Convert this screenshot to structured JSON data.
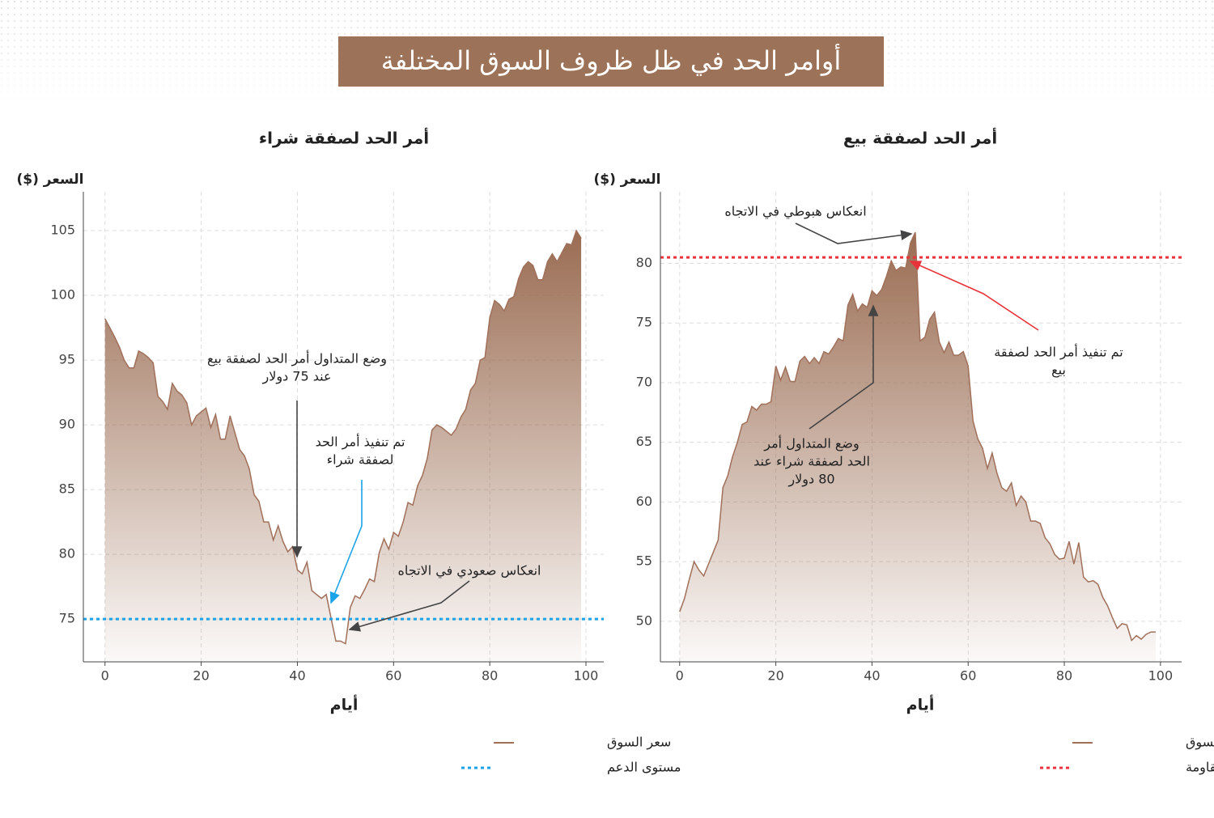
{
  "title": "أوامر الحد في ظل ظروف السوق المختلفة",
  "chart_data": [
    {
      "type": "area",
      "title": "أمر الحد لصفقة شراء",
      "y_label": "السعر ($)",
      "x_label": "أيام",
      "xlim": [
        -4.5,
        103.7
      ],
      "xticks": [
        0,
        20,
        40,
        60,
        80,
        100
      ],
      "ylim": [
        71.7,
        108
      ],
      "yticks": [
        75,
        80,
        85,
        90,
        95,
        100,
        105
      ],
      "grid": true,
      "x": [
        0,
        1,
        2,
        3,
        4,
        5,
        6,
        7,
        8,
        9,
        10,
        11,
        12,
        13,
        14,
        15,
        16,
        17,
        18,
        19,
        20,
        21,
        22,
        23,
        24,
        25,
        26,
        27,
        28,
        29,
        30,
        31,
        32,
        33,
        34,
        35,
        36,
        37,
        38,
        39,
        40,
        41,
        42,
        43,
        44,
        45,
        46,
        47,
        48,
        49,
        50,
        51,
        52,
        53,
        54,
        55,
        56,
        57,
        58,
        59,
        60,
        61,
        62,
        63,
        64,
        65,
        66,
        67,
        68,
        69,
        70,
        71,
        72,
        73,
        74,
        75,
        76,
        77,
        78,
        79,
        80,
        81,
        82,
        83,
        84,
        85,
        86,
        87,
        88,
        89,
        90,
        91,
        92,
        93,
        94,
        95,
        96,
        97,
        98,
        99
      ],
      "series": [
        {
          "name": "سعر السوق",
          "color": "#a0705a",
          "values": [
            98.2,
            97.5,
            96.8,
            96,
            95,
            94.4,
            94.4,
            95.7,
            95.5,
            95.2,
            94.8,
            92.2,
            91.8,
            91.2,
            93.2,
            92.6,
            92.3,
            91.7,
            90,
            90.7,
            91,
            91.3,
            89.8,
            90.8,
            88.9,
            88.9,
            90.7,
            89.4,
            88.1,
            87.6,
            86.6,
            84.6,
            84.1,
            82.5,
            82.5,
            81.1,
            82.2,
            81,
            80.2,
            80.6,
            78.8,
            78.5,
            79.4,
            77.2,
            76.9,
            76.6,
            76.9,
            75.1,
            73.3,
            73.3,
            73.1,
            75.9,
            76.8,
            76.6,
            77.3,
            78.1,
            77.9,
            80.1,
            81.2,
            80.4,
            81.7,
            81.4,
            82.5,
            84,
            83.8,
            85.3,
            86.1,
            87.4,
            89.6,
            90,
            89.8,
            89.5,
            89.2,
            89.7,
            90.6,
            91.2,
            92.7,
            93.2,
            95,
            95.2,
            98.3,
            99.6,
            99.3,
            98.8,
            99.7,
            99.9,
            101.3,
            102.2,
            102.6,
            102.3,
            101.2,
            101.2,
            102.6,
            103.2,
            102.6,
            103.3,
            104,
            103.9,
            105,
            104.4
          ]
        }
      ],
      "reference_line": {
        "name": "مستوى الدعم",
        "value": 75,
        "color": "#1aa3e8"
      },
      "annotations": [
        {
          "lines": [
            "وضع المتداول أمر الحد لصفقة بيع",
            "عند 75 دولار"
          ]
        },
        {
          "lines": [
            "تم تنفيذ أمر الحد",
            "لصفقة شراء"
          ]
        },
        {
          "lines": [
            "انعكاس صعودي في الاتجاه"
          ]
        }
      ]
    },
    {
      "type": "area",
      "title": "أمر الحد لصفقة بيع",
      "y_label": "السعر ($)",
      "x_label": "أيام",
      "xlim": [
        -4,
        104.4
      ],
      "xticks": [
        0,
        20,
        40,
        60,
        80,
        100
      ],
      "ylim": [
        46.6,
        86
      ],
      "yticks": [
        50,
        55,
        60,
        65,
        70,
        75,
        80
      ],
      "grid": true,
      "x": [
        0,
        1,
        2,
        3,
        4,
        5,
        6,
        7,
        8,
        9,
        10,
        11,
        12,
        13,
        14,
        15,
        16,
        17,
        18,
        19,
        20,
        21,
        22,
        23,
        24,
        25,
        26,
        27,
        28,
        29,
        30,
        31,
        32,
        33,
        34,
        35,
        36,
        37,
        38,
        39,
        40,
        41,
        42,
        43,
        44,
        45,
        46,
        47,
        48,
        49,
        50,
        51,
        52,
        53,
        54,
        55,
        56,
        57,
        58,
        59,
        60,
        61,
        62,
        63,
        64,
        65,
        66,
        67,
        68,
        69,
        70,
        71,
        72,
        73,
        74,
        75,
        76,
        77,
        78,
        79,
        80,
        81,
        82,
        83,
        84,
        85,
        86,
        87,
        88,
        89,
        90,
        91,
        92,
        93,
        94,
        95,
        96,
        97,
        98,
        99
      ],
      "series": [
        {
          "name": "سعر السوق",
          "color": "#a0705a",
          "values": [
            50.8,
            51.9,
            53.5,
            55,
            54.3,
            53.8,
            54.8,
            55.8,
            56.8,
            61.2,
            62.2,
            63.8,
            65,
            66.5,
            66.7,
            68,
            67.7,
            68.2,
            68.2,
            68.4,
            71.4,
            70.2,
            71.3,
            70.1,
            70.1,
            71.8,
            72.2,
            71.6,
            72.1,
            71.6,
            72.6,
            72.4,
            73,
            73.7,
            73.5,
            76.5,
            77.4,
            76,
            76.6,
            76.3,
            77.7,
            77.3,
            77.8,
            78.9,
            80.2,
            79.4,
            79.7,
            79.6,
            81.7,
            82.6,
            73.5,
            73.8,
            75.3,
            75.9,
            73.4,
            72.5,
            73.4,
            72.3,
            72.3,
            72.6,
            71.4,
            66.8,
            65.3,
            64.5,
            62.8,
            64.1,
            62.4,
            61.2,
            60.9,
            61.6,
            59.7,
            60.5,
            60,
            58.4,
            58.4,
            58.2,
            57,
            56.5,
            55.6,
            55.2,
            55.3,
            56.7,
            54.8,
            56.6,
            53.7,
            53.3,
            53.4,
            53.1,
            52,
            51.3,
            50.3,
            49.4,
            49.8,
            49.7,
            48.4,
            48.8,
            48.5,
            48.9,
            49.1,
            49.1
          ]
        }
      ],
      "reference_line": {
        "name": "مستوى المقاومة",
        "value": 80.5,
        "color": "#e8333a"
      },
      "annotations": [
        {
          "lines": [
            "انعكاس هبوطي في الاتجاه"
          ]
        },
        {
          "lines": [
            "تم تنفيذ أمر الحد لصفقة",
            "بيع"
          ]
        },
        {
          "lines": [
            "وضع المتداول أمر",
            "الحد لصفقة شراء عند",
            "80 دولار"
          ]
        }
      ]
    }
  ]
}
